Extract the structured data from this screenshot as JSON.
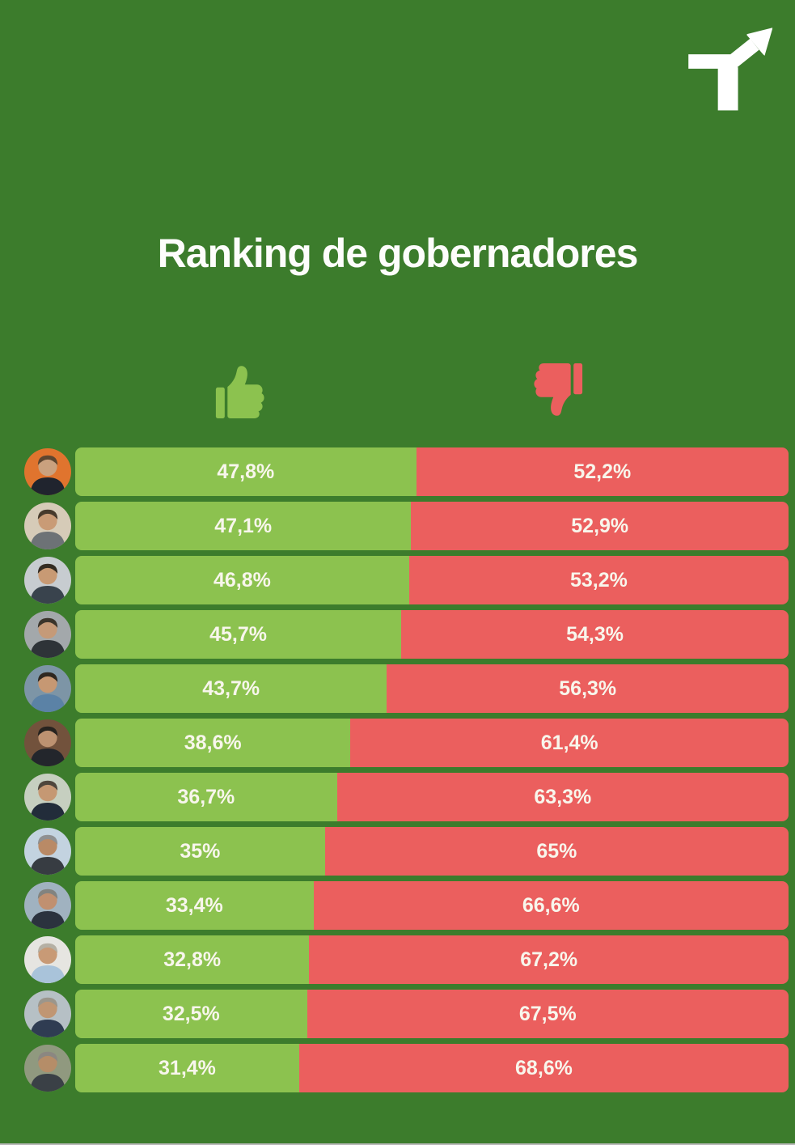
{
  "page": {
    "background_color": "#3c7c2c",
    "bar_positive_color": "#8cc24f",
    "bar_negative_color": "#eb5f5e",
    "label_color": "#f8f6ec"
  },
  "header": {
    "title": "Ranking de gobernadores",
    "logo_icon": "trend-arrow-logo",
    "logo_color": "#ffffff"
  },
  "legend": {
    "positive_icon": "thumbs-up",
    "positive_color": "#8cc24f",
    "negative_icon": "thumbs-down",
    "negative_color": "#eb5f5e"
  },
  "chart_data": {
    "type": "bar",
    "orientation": "horizontal-stacked",
    "title": "Ranking de gobernadores",
    "categories": [
      "gobernador-1",
      "gobernador-2",
      "gobernador-3",
      "gobernador-4",
      "gobernador-5",
      "gobernador-6",
      "gobernador-7",
      "gobernador-8",
      "gobernador-9",
      "gobernador-10",
      "gobernador-11",
      "gobernador-12"
    ],
    "series": [
      {
        "name": "thumbs-up (imagen positiva)",
        "values": [
          47.8,
          47.1,
          46.8,
          45.7,
          43.7,
          38.6,
          36.7,
          35,
          33.4,
          32.8,
          32.5,
          31.4
        ]
      },
      {
        "name": "thumbs-down (imagen negativa)",
        "values": [
          52.2,
          52.9,
          53.2,
          54.3,
          56.3,
          61.4,
          63.3,
          65,
          66.6,
          67.2,
          67.5,
          68.6
        ]
      }
    ],
    "xlim": [
      0,
      100
    ],
    "value_format": "percent with comma decimal",
    "legend_position": "top",
    "grid": false,
    "note": "categories identified only by circular photo avatars, no names shown"
  },
  "rows": [
    {
      "approval_label": "47,8%",
      "disapproval_label": "52,2%",
      "approval_pct": 47.8,
      "avatar": {
        "bg": "#e0742e",
        "skin": "#caa17e",
        "hair": "#5d4630",
        "shirt": "#20242e"
      }
    },
    {
      "approval_label": "47,1%",
      "disapproval_label": "52,9%",
      "approval_pct": 47.1,
      "avatar": {
        "bg": "#d6cbb8",
        "skin": "#c99b76",
        "hair": "#473a2c",
        "shirt": "#6d7276"
      }
    },
    {
      "approval_label": "46,8%",
      "disapproval_label": "53,2%",
      "approval_pct": 46.8,
      "avatar": {
        "bg": "#c7ccd0",
        "skin": "#c89a74",
        "hair": "#332b22",
        "shirt": "#39434d"
      }
    },
    {
      "approval_label": "45,7%",
      "disapproval_label": "54,3%",
      "approval_pct": 45.7,
      "avatar": {
        "bg": "#a3a8ab",
        "skin": "#c59a78",
        "hair": "#3a342b",
        "shirt": "#2e3338"
      }
    },
    {
      "approval_label": "43,7%",
      "disapproval_label": "56,3%",
      "approval_pct": 43.7,
      "avatar": {
        "bg": "#7d95a6",
        "skin": "#c69873",
        "hair": "#2e2720",
        "shirt": "#5b82a6"
      }
    },
    {
      "approval_label": "38,6%",
      "disapproval_label": "61,4%",
      "approval_pct": 38.6,
      "avatar": {
        "bg": "#72523c",
        "skin": "#bd9271",
        "hair": "#27231f",
        "shirt": "#23262c"
      }
    },
    {
      "approval_label": "36,7%",
      "disapproval_label": "63,3%",
      "approval_pct": 36.7,
      "avatar": {
        "bg": "#c6cfc0",
        "skin": "#c59873",
        "hair": "#4e463c",
        "shirt": "#222c3a"
      }
    },
    {
      "approval_label": "35%",
      "disapproval_label": "65%",
      "approval_pct": 35.0,
      "avatar": {
        "bg": "#c3d3e0",
        "skin": "#b98a66",
        "hair": "#8f9091",
        "shirt": "#373c42"
      }
    },
    {
      "approval_label": "33,4%",
      "disapproval_label": "66,6%",
      "approval_pct": 33.4,
      "avatar": {
        "bg": "#a0b2c0",
        "skin": "#c09070",
        "hair": "#82837f",
        "shirt": "#2b323e"
      }
    },
    {
      "approval_label": "32,8%",
      "disapproval_label": "67,2%",
      "approval_pct": 32.8,
      "avatar": {
        "bg": "#e6e5e1",
        "skin": "#c89a76",
        "hair": "#b5b0a4",
        "shirt": "#a9c3da"
      }
    },
    {
      "approval_label": "32,5%",
      "disapproval_label": "67,5%",
      "approval_pct": 32.5,
      "avatar": {
        "bg": "#b6c0c5",
        "skin": "#c09673",
        "hair": "#9b968c",
        "shirt": "#2f3c52"
      }
    },
    {
      "approval_label": "31,4%",
      "disapproval_label": "68,6%",
      "approval_pct": 31.4,
      "avatar": {
        "bg": "#90997f",
        "skin": "#b58d68",
        "hair": "#8b8781",
        "shirt": "#3a4046"
      }
    }
  ]
}
